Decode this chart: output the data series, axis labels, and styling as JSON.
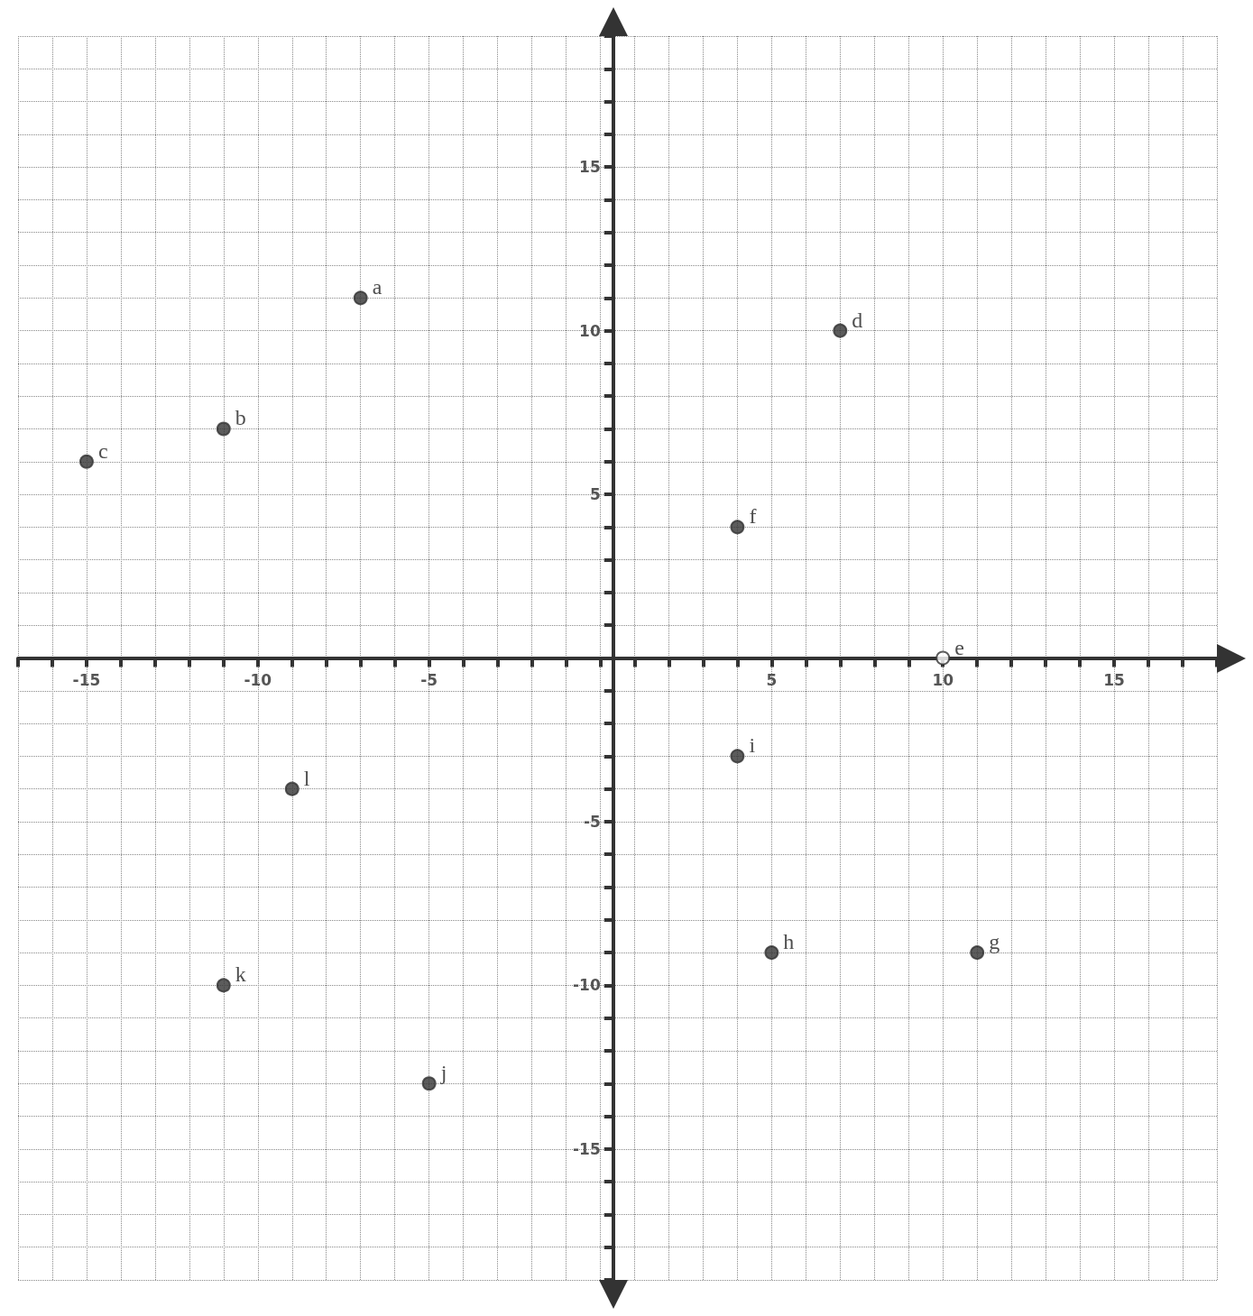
{
  "chart_data": {
    "type": "scatter",
    "marker": "circle",
    "grid": true,
    "legend": false,
    "xlim": [
      -17,
      18
    ],
    "ylim": [
      -19,
      19
    ],
    "xticks": [
      {
        "value": -17,
        "label": null
      },
      {
        "value": -16,
        "label": null
      },
      -15,
      {
        "value": -14,
        "label": null
      },
      {
        "value": -13,
        "label": null
      },
      {
        "value": -12,
        "label": null
      },
      {
        "value": -11,
        "label": null
      },
      -10,
      {
        "value": -9,
        "label": null
      },
      {
        "value": -8,
        "label": null
      },
      {
        "value": -7,
        "label": null
      },
      {
        "value": -6,
        "label": null
      },
      -5,
      {
        "value": -4,
        "label": null
      },
      {
        "value": -3,
        "label": null
      },
      {
        "value": -2,
        "label": null
      },
      {
        "value": -1,
        "label": null
      },
      {
        "value": 0,
        "label": null
      },
      {
        "value": 1,
        "label": null
      },
      {
        "value": 2,
        "label": null
      },
      {
        "value": 3,
        "label": null
      },
      {
        "value": 4,
        "label": null
      },
      5,
      {
        "value": 6,
        "label": null
      },
      {
        "value": 7,
        "label": null
      },
      {
        "value": 8,
        "label": null
      },
      {
        "value": 9,
        "label": null
      },
      10,
      {
        "value": 11,
        "label": null
      },
      {
        "value": 12,
        "label": null
      },
      {
        "value": 13,
        "label": null
      },
      {
        "value": 14,
        "label": null
      },
      15,
      {
        "value": 16,
        "label": null
      },
      {
        "value": 17,
        "label": null
      },
      {
        "value": 18,
        "label": null
      }
    ],
    "yticks": [
      {
        "value": -19,
        "label": null
      },
      {
        "value": -18,
        "label": null
      },
      {
        "value": -17,
        "label": null
      },
      {
        "value": -16,
        "label": null
      },
      -15,
      {
        "value": -14,
        "label": null
      },
      {
        "value": -13,
        "label": null
      },
      {
        "value": -12,
        "label": null
      },
      {
        "value": -11,
        "label": null
      },
      -10,
      {
        "value": -9,
        "label": null
      },
      {
        "value": -8,
        "label": null
      },
      {
        "value": -7,
        "label": null
      },
      {
        "value": -6,
        "label": null
      },
      -5,
      {
        "value": -4,
        "label": null
      },
      {
        "value": -3,
        "label": null
      },
      {
        "value": -2,
        "label": null
      },
      {
        "value": -1,
        "label": null
      },
      {
        "value": 0,
        "label": null
      },
      {
        "value": 1,
        "label": null
      },
      {
        "value": 2,
        "label": null
      },
      {
        "value": 3,
        "label": null
      },
      {
        "value": 4,
        "label": null
      },
      5,
      {
        "value": 6,
        "label": null
      },
      {
        "value": 7,
        "label": null
      },
      {
        "value": 8,
        "label": null
      },
      {
        "value": 9,
        "label": null
      },
      10,
      {
        "value": 11,
        "label": null
      },
      {
        "value": 12,
        "label": null
      },
      {
        "value": 13,
        "label": null
      },
      {
        "value": 14,
        "label": null
      },
      15,
      {
        "value": 16,
        "label": null
      },
      {
        "value": 17,
        "label": null
      },
      {
        "value": 18,
        "label": null
      },
      {
        "value": 19,
        "label": null
      }
    ],
    "series": [
      {
        "name": "a",
        "color": "#333333",
        "x": [
          -7
        ],
        "values": [
          11
        ]
      },
      {
        "name": "b",
        "color": "#333333",
        "x": [
          -11
        ],
        "values": [
          7
        ]
      },
      {
        "name": "c",
        "color": "#333333",
        "x": [
          -15
        ],
        "values": [
          6
        ]
      },
      {
        "name": "d",
        "color": "#333333",
        "x": [
          7
        ],
        "values": [
          10
        ]
      },
      {
        "name": "e",
        "color": "#ffffff",
        "x": [
          10
        ],
        "values": [
          0
        ]
      },
      {
        "name": "f",
        "color": "#333333",
        "x": [
          4
        ],
        "values": [
          4
        ]
      },
      {
        "name": "g",
        "color": "#333333",
        "x": [
          11
        ],
        "values": [
          -9
        ]
      },
      {
        "name": "h",
        "color": "#333333",
        "x": [
          5
        ],
        "values": [
          -9
        ]
      },
      {
        "name": "i",
        "color": "#333333",
        "x": [
          4
        ],
        "values": [
          -3
        ]
      },
      {
        "name": "j",
        "color": "#333333",
        "x": [
          -5
        ],
        "values": [
          -13
        ]
      },
      {
        "name": "k",
        "color": "#333333",
        "x": [
          -11
        ],
        "values": [
          -10
        ]
      },
      {
        "name": "l",
        "color": "#333333",
        "x": [
          -9
        ],
        "values": [
          -4
        ]
      }
    ]
  }
}
